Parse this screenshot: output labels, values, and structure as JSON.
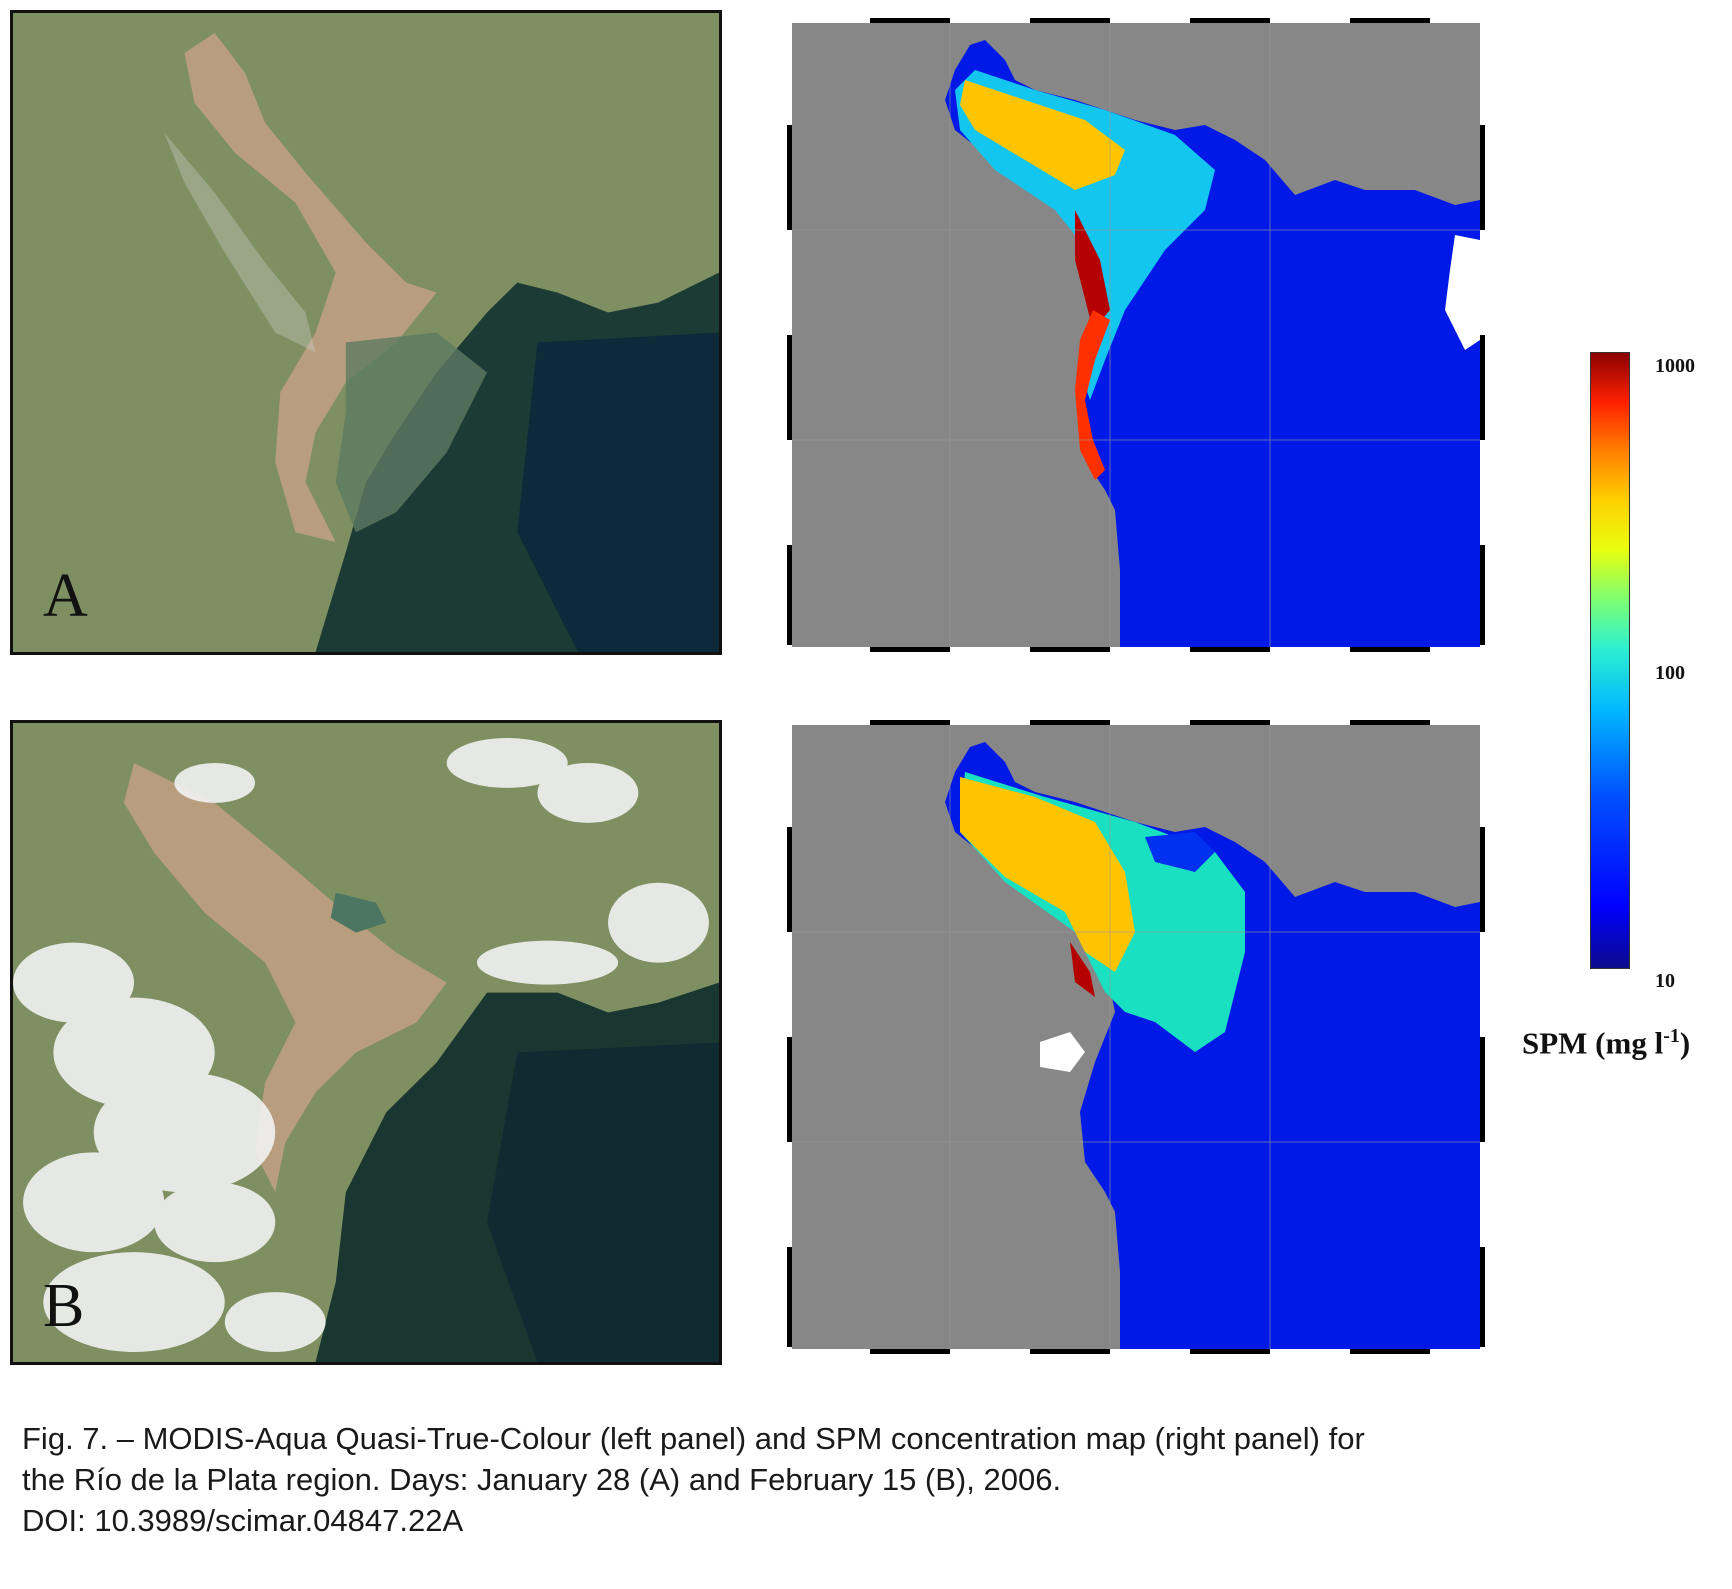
{
  "panels": [
    {
      "letter": "A",
      "date": "January 28"
    },
    {
      "letter": "B",
      "date": "February 15"
    }
  ],
  "colorbar": {
    "ticks": [
      "1000",
      "100",
      "10"
    ],
    "unit": "SPM (mg l",
    "unit_sup": "-1",
    "unit_close": ")",
    "colors": [
      "#0a0a8c",
      "#0000ff",
      "#00b8ff",
      "#7dff70",
      "#ffd000",
      "#ff2000",
      "#8b0000"
    ]
  },
  "caption": {
    "line1": "Fig. 7. – MODIS-Aqua Quasi-True-Colour (left panel) and SPM concentration map (right panel) for",
    "line2": "the Río de la Plata region. Days: January 28 (A) and February 15 (B), 2006.",
    "line3": "DOI: 10.3989/scimar.04847.22A"
  }
}
